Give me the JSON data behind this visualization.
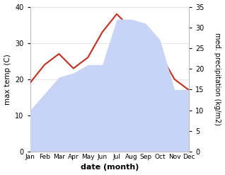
{
  "months": [
    "Jan",
    "Feb",
    "Mar",
    "Apr",
    "May",
    "Jun",
    "Jul",
    "Aug",
    "Sep",
    "Oct",
    "Nov",
    "Dec"
  ],
  "temp_C": [
    19,
    24,
    27,
    23,
    26,
    33,
    38,
    34,
    30,
    27,
    20,
    17
  ],
  "precip_mm": [
    10,
    14,
    18,
    19,
    21,
    21,
    32,
    32,
    31,
    27,
    15,
    15
  ],
  "precip_fill_color": "#c8d4f5",
  "temp_line_color": "#c0392b",
  "left_ylim": [
    0,
    40
  ],
  "right_ylim": [
    0,
    35
  ],
  "left_yticks": [
    0,
    10,
    20,
    30,
    40
  ],
  "right_yticks": [
    0,
    5,
    10,
    15,
    20,
    25,
    30,
    35
  ],
  "ylabel_left": "max temp (C)",
  "ylabel_right": "med. precipitation (kg/m2)",
  "xlabel": "date (month)",
  "background_color": "#ffffff",
  "line_width": 1.6
}
